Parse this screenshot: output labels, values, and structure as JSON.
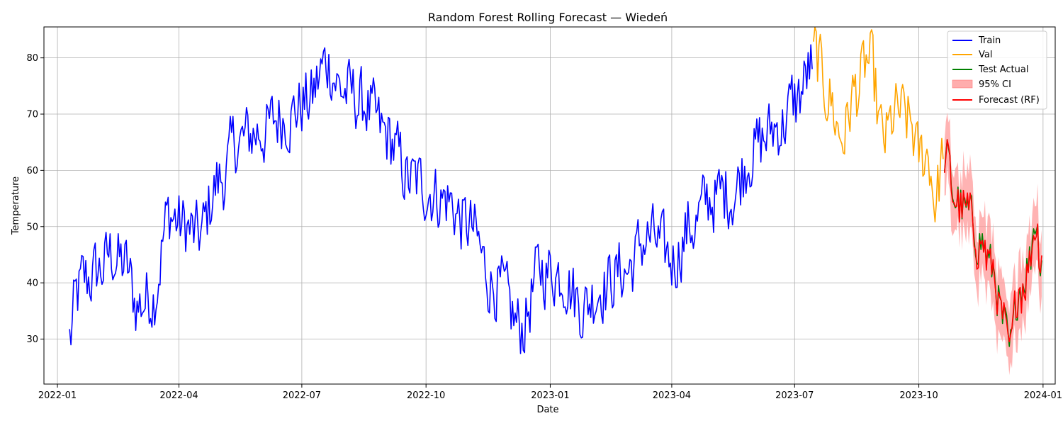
{
  "chart_data": {
    "type": "line",
    "title": "Random Forest Rolling Forecast — Wiedeń",
    "xlabel": "Date",
    "ylabel": "Temperature",
    "x_ticks": [
      "2022-01",
      "2022-04",
      "2022-07",
      "2022-10",
      "2023-01",
      "2023-04",
      "2023-07",
      "2023-10",
      "2024-01"
    ],
    "y_ticks": [
      30,
      40,
      50,
      60,
      70,
      80
    ],
    "xlim": [
      "2021-12-22",
      "2024-01-10"
    ],
    "ylim": [
      22,
      85.5
    ],
    "grid": true,
    "legend_position": "top-right",
    "legend": {
      "train": "Train",
      "val": "Val",
      "test": "Test Actual",
      "ci": "95% CI",
      "forecast": "Forecast (RF)"
    },
    "colors": {
      "train": "#0000ff",
      "val": "#ffa500",
      "test": "#008000",
      "ci": "#ff9999",
      "forecast": "#ff0000"
    },
    "anchor_dates": {
      "train_start": "2022-01-10",
      "val_start": "2023-07-15",
      "test_start": "2023-10-20",
      "test_end": "2023-12-31"
    },
    "series": {
      "train": {
        "name": "Train",
        "anchors": [
          [
            "2022-01-10",
            30
          ],
          [
            "2022-01-15",
            37
          ],
          [
            "2022-01-20",
            40
          ],
          [
            "2022-02-01",
            42
          ],
          [
            "2022-02-10",
            45
          ],
          [
            "2022-02-20",
            43
          ],
          [
            "2022-03-01",
            36
          ],
          [
            "2022-03-12",
            38
          ],
          [
            "2022-03-25",
            52
          ],
          [
            "2022-04-05",
            50
          ],
          [
            "2022-04-15",
            48
          ],
          [
            "2022-05-01",
            58
          ],
          [
            "2022-05-15",
            65
          ],
          [
            "2022-06-01",
            67
          ],
          [
            "2022-06-20",
            70
          ],
          [
            "2022-07-05",
            72
          ],
          [
            "2022-07-20",
            79
          ],
          [
            "2022-08-01",
            74
          ],
          [
            "2022-08-15",
            72
          ],
          [
            "2022-09-01",
            66
          ],
          [
            "2022-09-20",
            58
          ],
          [
            "2022-10-01",
            57
          ],
          [
            "2022-10-15",
            55
          ],
          [
            "2022-11-01",
            50
          ],
          [
            "2022-11-20",
            40
          ],
          [
            "2022-12-10",
            32
          ],
          [
            "2022-12-25",
            42
          ],
          [
            "2023-01-10",
            42
          ],
          [
            "2023-01-25",
            36
          ],
          [
            "2023-02-10",
            40
          ],
          [
            "2023-02-25",
            42
          ],
          [
            "2023-03-15",
            48
          ],
          [
            "2023-04-01",
            44
          ],
          [
            "2023-04-15",
            50
          ],
          [
            "2023-05-01",
            55
          ],
          [
            "2023-05-15",
            56
          ],
          [
            "2023-06-01",
            64
          ],
          [
            "2023-06-20",
            68
          ],
          [
            "2023-07-01",
            72
          ],
          [
            "2023-07-14",
            78
          ]
        ]
      },
      "val": {
        "name": "Val",
        "anchors": [
          [
            "2023-07-15",
            81
          ],
          [
            "2023-07-25",
            74
          ],
          [
            "2023-08-05",
            66
          ],
          [
            "2023-08-15",
            74
          ],
          [
            "2023-08-25",
            79
          ],
          [
            "2023-09-05",
            65
          ],
          [
            "2023-09-15",
            70
          ],
          [
            "2023-09-25",
            68
          ],
          [
            "2023-10-01",
            62
          ],
          [
            "2023-10-08",
            63
          ],
          [
            "2023-10-13",
            55
          ],
          [
            "2023-10-19",
            62
          ]
        ]
      },
      "test": {
        "name": "Test Actual",
        "anchors": [
          [
            "2023-10-20",
            63
          ],
          [
            "2023-10-28",
            55
          ],
          [
            "2023-11-05",
            52
          ],
          [
            "2023-11-15",
            48
          ],
          [
            "2023-11-25",
            42
          ],
          [
            "2023-12-03",
            32
          ],
          [
            "2023-12-07",
            27
          ],
          [
            "2023-12-15",
            40
          ],
          [
            "2023-12-22",
            44
          ],
          [
            "2023-12-26",
            52
          ],
          [
            "2023-12-31",
            44
          ]
        ]
      },
      "forecast": {
        "name": "Forecast (RF)",
        "anchors": [
          [
            "2023-10-20",
            64
          ],
          [
            "2023-10-28",
            56
          ],
          [
            "2023-11-05",
            53
          ],
          [
            "2023-11-15",
            49
          ],
          [
            "2023-11-25",
            43
          ],
          [
            "2023-12-03",
            34
          ],
          [
            "2023-12-07",
            29
          ],
          [
            "2023-12-15",
            41
          ],
          [
            "2023-12-22",
            44
          ],
          [
            "2023-12-26",
            51
          ],
          [
            "2023-12-31",
            45
          ]
        ]
      },
      "ci_half_width": 5
    }
  }
}
